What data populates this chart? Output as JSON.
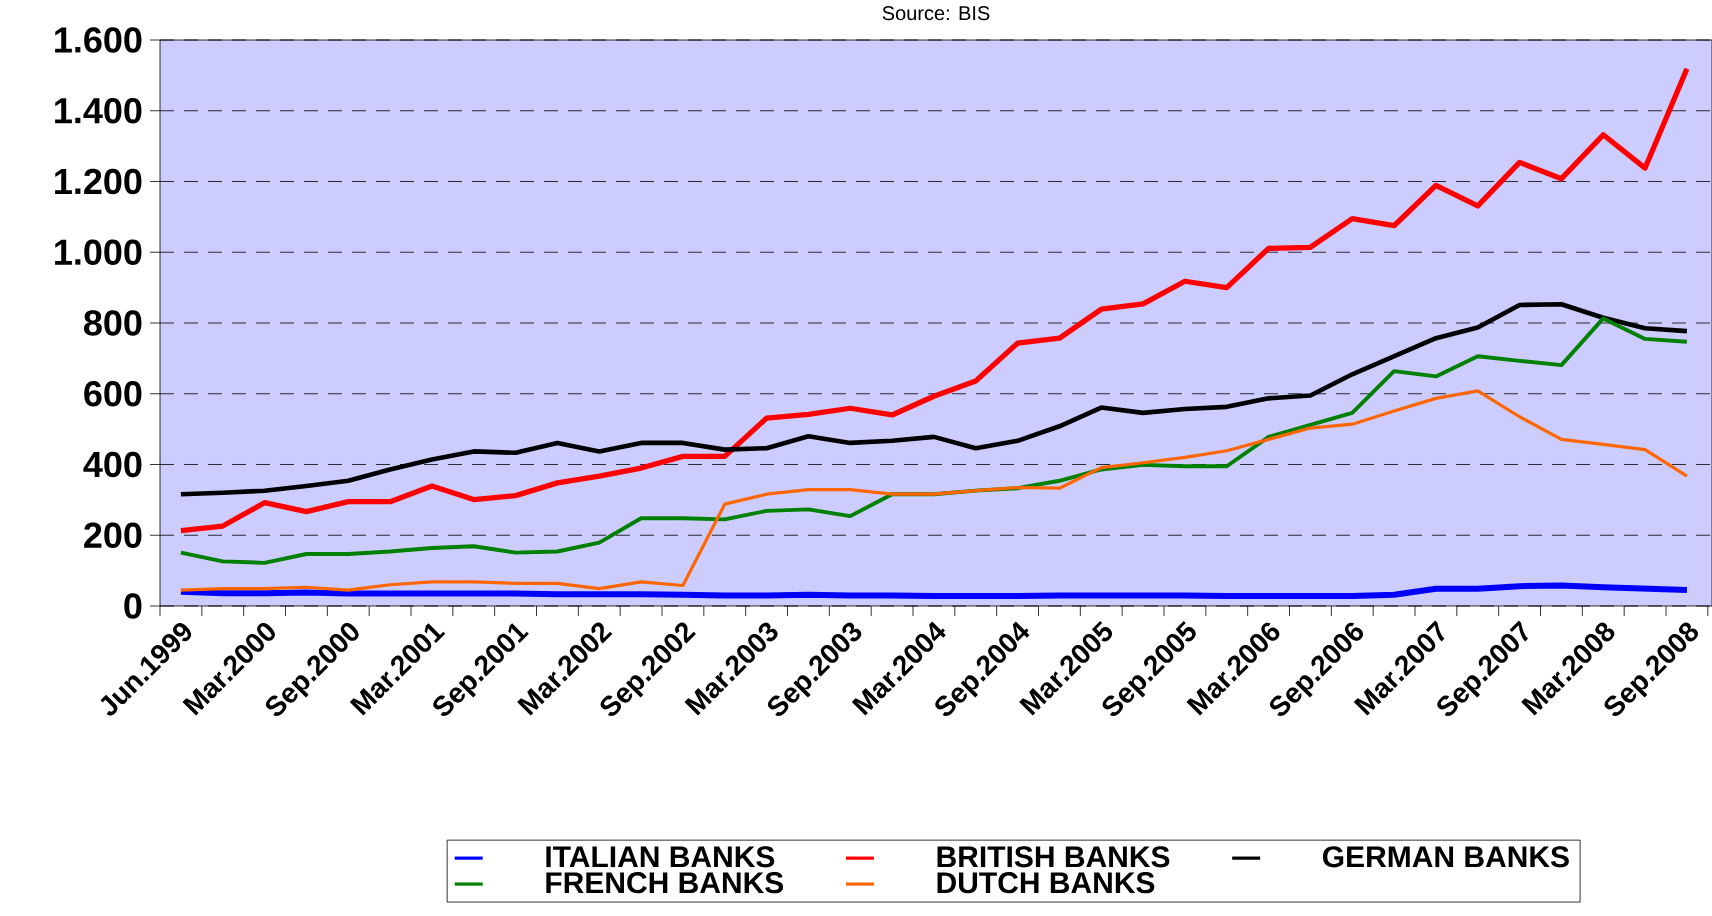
{
  "chart_data": {
    "type": "line",
    "annotations": [
      "Source: BIS"
    ],
    "categories": [
      "Jun.1999",
      null,
      "Mar.2000",
      null,
      "Sep.2000",
      null,
      "Mar.2001",
      null,
      "Sep.2001",
      null,
      "Mar.2002",
      null,
      "Sep.2002",
      null,
      "Mar.2003",
      null,
      "Sep.2003",
      null,
      "Mar.2004",
      null,
      "Sep.2004",
      null,
      "Mar.2005",
      null,
      "Sep.2005",
      null,
      "Mar.2006",
      null,
      "Sep.2006",
      null,
      "Mar.2007",
      null,
      "Sep.2007",
      null,
      "Mar.2008",
      null,
      "Sep.2008"
    ],
    "series": [
      {
        "name": "ITALIAN BANKS",
        "color": "#0000ff",
        "values": [
          40,
          36,
          36,
          38,
          35,
          35,
          35,
          35,
          35,
          33,
          33,
          33,
          32,
          30,
          30,
          32,
          30,
          30,
          28,
          28,
          28,
          30,
          30,
          30,
          30,
          28,
          28,
          28,
          28,
          32,
          49,
          49,
          56,
          58,
          53,
          49,
          45
        ]
      },
      {
        "name": "BRITISH BANKS",
        "color": "#ff0000",
        "values": [
          213,
          226,
          292,
          267,
          295,
          295,
          339,
          301,
          312,
          348,
          367,
          390,
          423,
          423,
          531,
          542,
          559,
          540,
          593,
          636,
          743,
          757,
          839,
          854,
          918,
          900,
          1011,
          1014,
          1095,
          1075,
          1189,
          1131,
          1254,
          1208,
          1332,
          1238,
          1519
        ]
      },
      {
        "name": "GERMAN BANKS",
        "color": "#000000",
        "values": [
          316,
          320,
          326,
          339,
          354,
          386,
          414,
          437,
          433,
          461,
          437,
          461,
          461,
          442,
          446,
          480,
          461,
          467,
          478,
          446,
          467,
          508,
          561,
          546,
          557,
          563,
          587,
          595,
          655,
          706,
          757,
          787,
          851,
          853,
          815,
          785,
          777
        ]
      },
      {
        "name": "FRENCH BANKS",
        "color": "#008000",
        "values": [
          151,
          126,
          122,
          147,
          147,
          154,
          164,
          169,
          151,
          154,
          179,
          248,
          248,
          245,
          269,
          273,
          254,
          316,
          316,
          326,
          333,
          354,
          386,
          399,
          395,
          395,
          478,
          512,
          546,
          664,
          649,
          706,
          693,
          681,
          813,
          755,
          747
        ]
      },
      {
        "name": "DUTCH BANKS",
        "color": "#ff6600",
        "values": [
          45,
          49,
          49,
          53,
          45,
          60,
          68,
          68,
          64,
          64,
          49,
          68,
          58,
          288,
          316,
          329,
          329,
          316,
          316,
          326,
          335,
          333,
          391,
          405,
          420,
          439,
          471,
          503,
          514,
          551,
          587,
          608,
          535,
          471,
          457,
          442,
          367
        ]
      }
    ],
    "ylim": [
      0,
      1600
    ],
    "yticks": [
      0,
      200,
      400,
      600,
      800,
      {
        "value": 1000,
        "label": "1.000"
      },
      {
        "value": 1200,
        "label": "1.200"
      },
      {
        "value": 1400,
        "label": "1.400"
      },
      {
        "value": 1600,
        "label": "1.600"
      }
    ],
    "grid": "y",
    "line_style": "solid",
    "legend": "bottom"
  }
}
